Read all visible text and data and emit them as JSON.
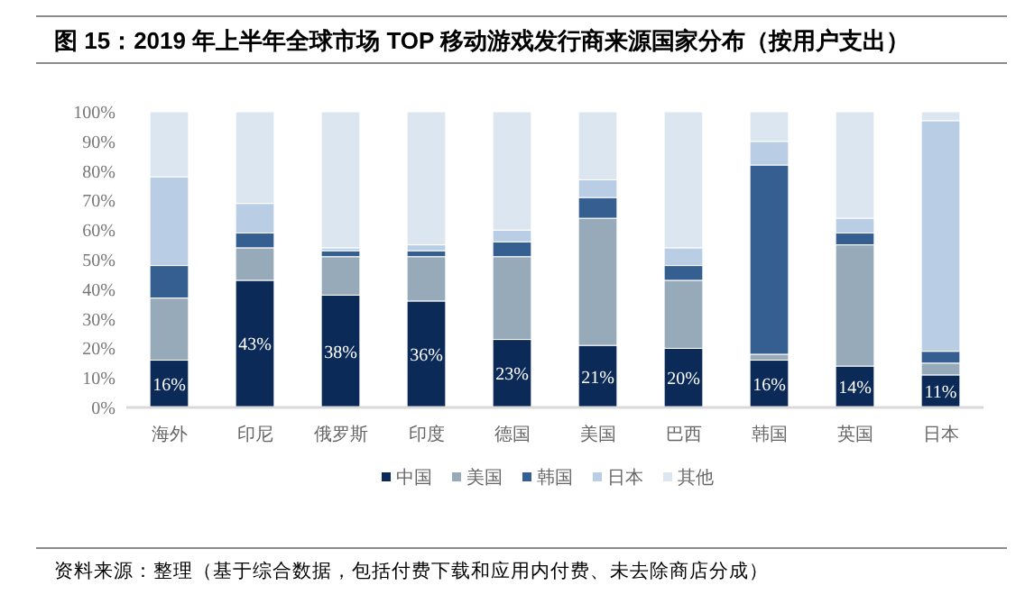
{
  "chart_data": {
    "type": "bar",
    "stacked": true,
    "legend": "bottom",
    "title": "图 15：2019 年上半年全球市场 TOP 移动游戏发行商来源国家分布（按用户支出）",
    "categories": [
      "海外",
      "印尼",
      "俄罗斯",
      "印度",
      "德国",
      "美国",
      "巴西",
      "韩国",
      "英国",
      "日本"
    ],
    "series": [
      {
        "name": "中国",
        "color": "#0b2a57",
        "values": [
          16,
          43,
          38,
          36,
          23,
          21,
          20,
          16,
          14,
          11
        ],
        "value_labels": [
          "16%",
          "43%",
          "38%",
          "36%",
          "23%",
          "21%",
          "20%",
          "16%",
          "14%",
          "11%"
        ]
      },
      {
        "name": "美国",
        "color": "#96aab9",
        "values": [
          21,
          11,
          13,
          15,
          28,
          43,
          23,
          2,
          41,
          4
        ]
      },
      {
        "name": "韩国",
        "color": "#365f91",
        "values": [
          11,
          5,
          2,
          2,
          5,
          7,
          5,
          64,
          4,
          4
        ]
      },
      {
        "name": "日本",
        "color": "#b9cde5",
        "values": [
          30,
          10,
          1,
          2,
          4,
          6,
          6,
          8,
          5,
          78
        ]
      },
      {
        "name": "其他",
        "color": "#dce6f1",
        "values": [
          22,
          31,
          46,
          45,
          40,
          23,
          46,
          10,
          36,
          3
        ]
      }
    ],
    "ylim": [
      0,
      100
    ],
    "yticks": [
      {
        "value": 0,
        "label": "0%"
      },
      {
        "value": 10,
        "label": "10%"
      },
      {
        "value": 20,
        "label": "20%"
      },
      {
        "value": 30,
        "label": "30%"
      },
      {
        "value": 40,
        "label": "40%"
      },
      {
        "value": 50,
        "label": "50%"
      },
      {
        "value": 60,
        "label": "60%"
      },
      {
        "value": 70,
        "label": "70%"
      },
      {
        "value": 80,
        "label": "80%"
      },
      {
        "value": 90,
        "label": "90%"
      },
      {
        "value": 100,
        "label": "100%"
      }
    ],
    "annotations": [
      "资料来源：整理（基于综合数据，包括付费下载和应用内付费、未去除商店分成）"
    ]
  }
}
